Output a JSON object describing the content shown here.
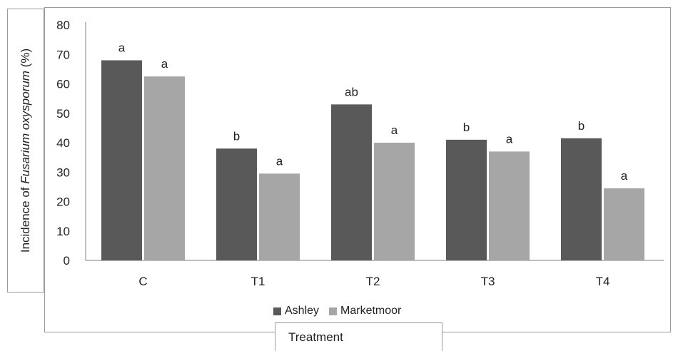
{
  "chart_data": {
    "type": "bar",
    "categories": [
      "C",
      "T1",
      "T2",
      "T3",
      "T4"
    ],
    "series": [
      {
        "name": "Ashley",
        "color": "#595959",
        "values": [
          68,
          38,
          53,
          41,
          41.5
        ],
        "letters": [
          "a",
          "b",
          "ab",
          "b",
          "b"
        ]
      },
      {
        "name": "Marketmoor",
        "color": "#a6a6a6",
        "values": [
          62.5,
          29.5,
          40,
          37,
          24.5
        ],
        "letters": [
          "a",
          "a",
          "a",
          "a",
          "a"
        ]
      }
    ],
    "ylabel_prefix": "Incidence of ",
    "ylabel_italic": "Fusarium oxysporum",
    "ylabel_suffix": " (%)",
    "xlabel": "Treatment",
    "yticks": [
      "0",
      "10",
      "20",
      "30",
      "40",
      "50",
      "60",
      "70",
      "80"
    ],
    "ylim": [
      0,
      80
    ],
    "grid": false,
    "legend_position": "bottom"
  }
}
